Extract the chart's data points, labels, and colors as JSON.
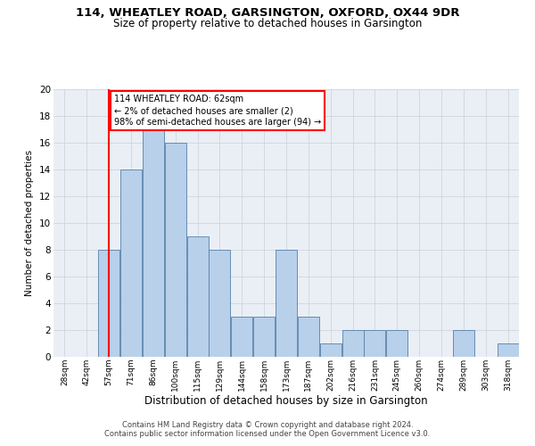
{
  "title1": "114, WHEATLEY ROAD, GARSINGTON, OXFORD, OX44 9DR",
  "title2": "Size of property relative to detached houses in Garsington",
  "xlabel": "Distribution of detached houses by size in Garsington",
  "ylabel": "Number of detached properties",
  "bin_labels": [
    "28sqm",
    "42sqm",
    "57sqm",
    "71sqm",
    "86sqm",
    "100sqm",
    "115sqm",
    "129sqm",
    "144sqm",
    "158sqm",
    "173sqm",
    "187sqm",
    "202sqm",
    "216sqm",
    "231sqm",
    "245sqm",
    "260sqm",
    "274sqm",
    "289sqm",
    "303sqm",
    "318sqm"
  ],
  "bar_values": [
    0,
    0,
    8,
    14,
    17,
    16,
    9,
    8,
    3,
    3,
    8,
    3,
    1,
    2,
    2,
    2,
    0,
    0,
    2,
    0,
    1
  ],
  "bar_color": "#b8d0ea",
  "bar_edge_color": "#5580aa",
  "vline_x_idx": 2.0,
  "annotation_text": "114 WHEATLEY ROAD: 62sqm\n← 2% of detached houses are smaller (2)\n98% of semi-detached houses are larger (94) →",
  "vline_color": "red",
  "footer1": "Contains HM Land Registry data © Crown copyright and database right 2024.",
  "footer2": "Contains public sector information licensed under the Open Government Licence v3.0.",
  "ylim": [
    0,
    20
  ],
  "yticks": [
    0,
    2,
    4,
    6,
    8,
    10,
    12,
    14,
    16,
    18,
    20
  ],
  "grid_color": "#c8d0d8",
  "bg_color": "#eaeff5"
}
